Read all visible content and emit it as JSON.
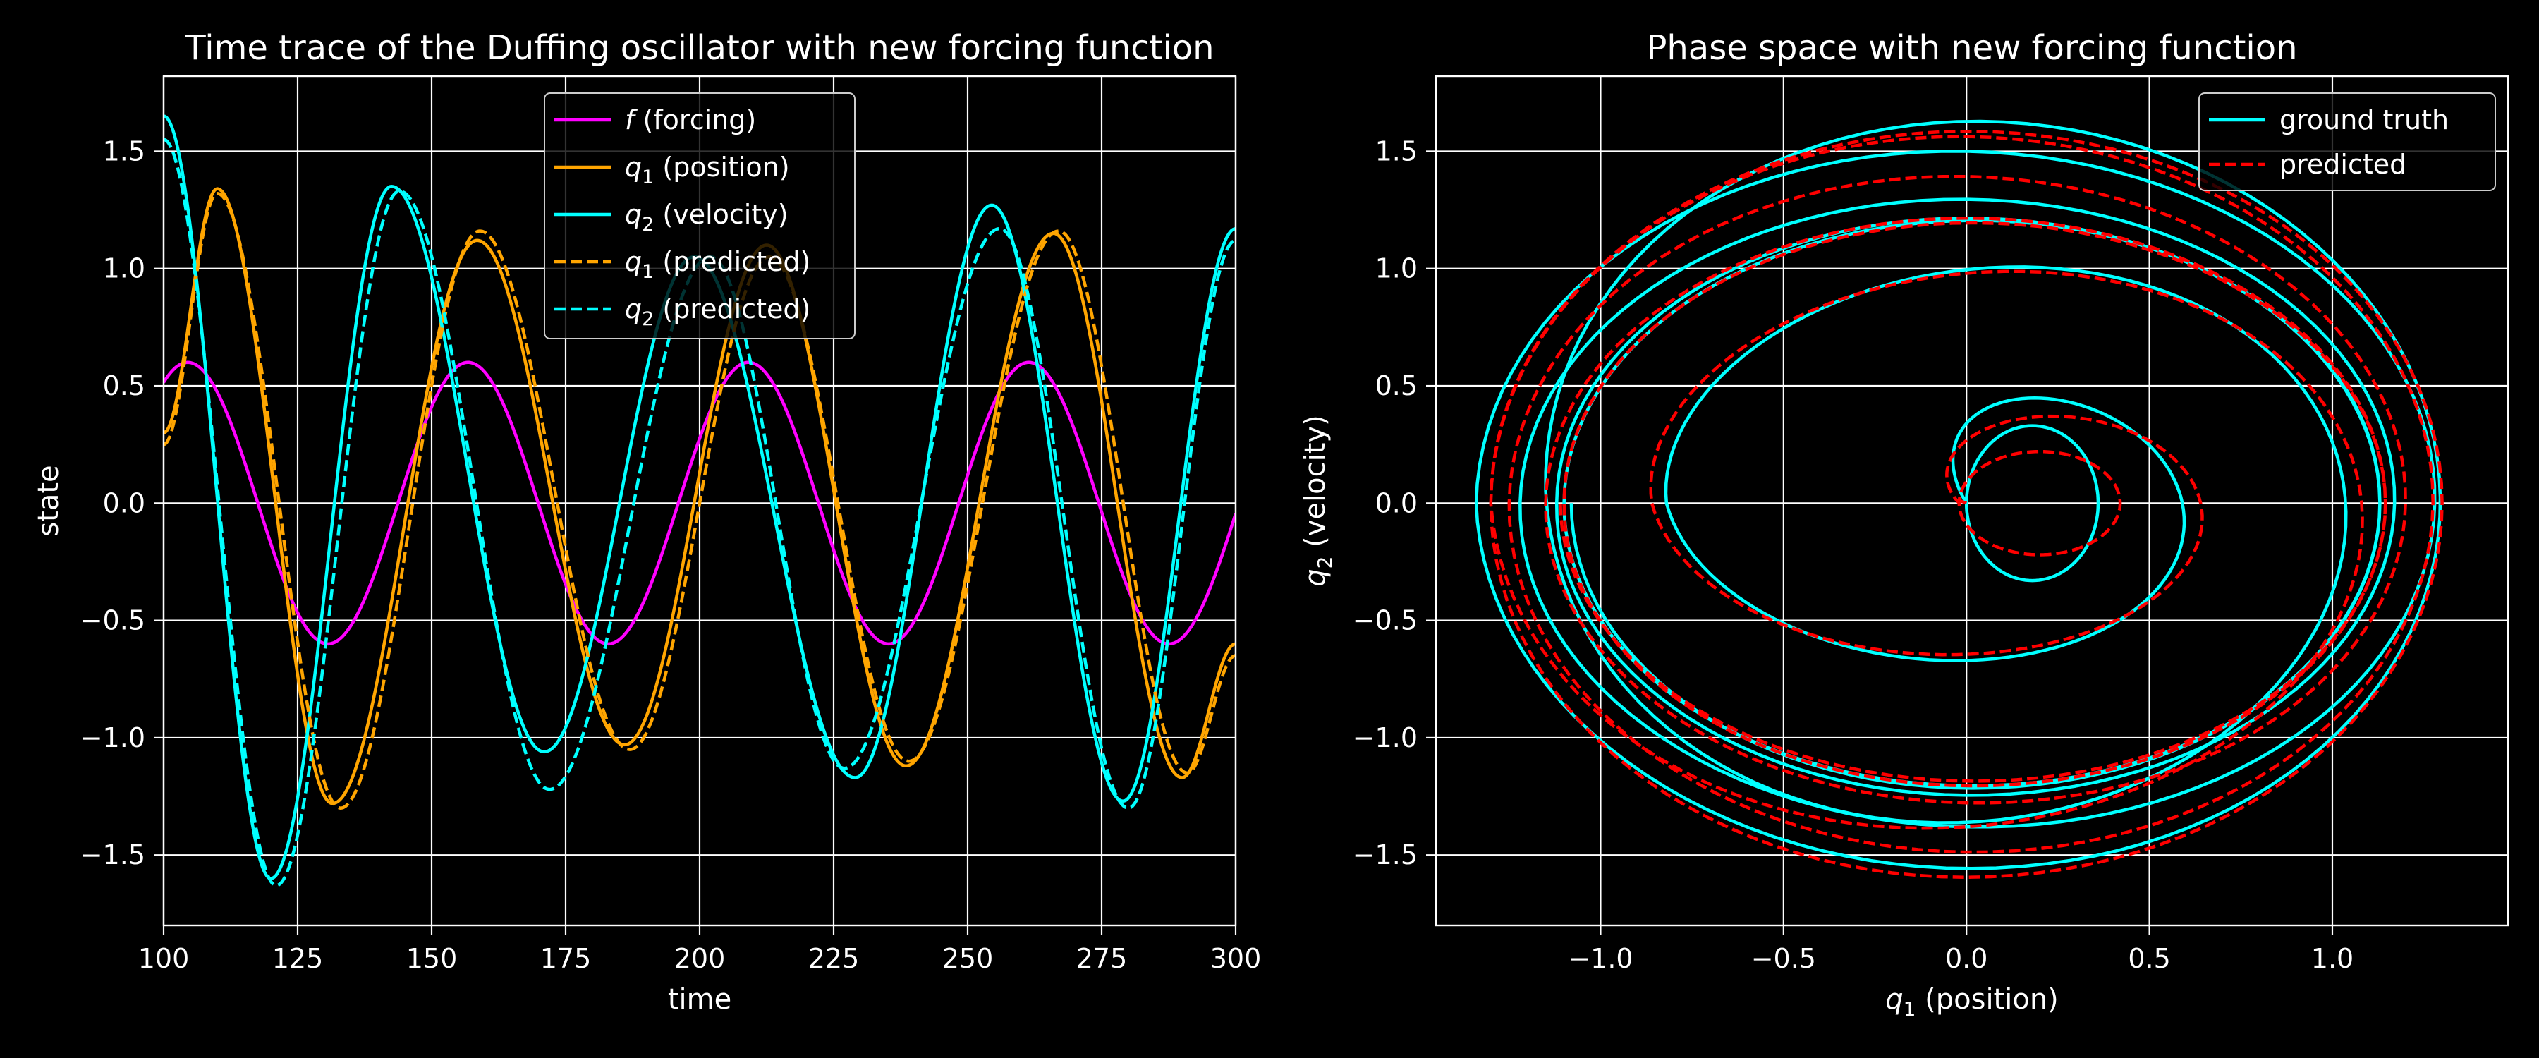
{
  "chart_data": [
    {
      "type": "line",
      "title": "Time trace of the Duffing oscillator with new forcing function",
      "xlabel": "time",
      "ylabel": "state",
      "xlim": [
        100,
        300
      ],
      "ylim": [
        -1.8,
        1.82
      ],
      "xticks": [
        100,
        125,
        150,
        175,
        200,
        225,
        250,
        275,
        300
      ],
      "xtick_labels": [
        "100",
        "125",
        "150",
        "175",
        "200",
        "225",
        "250",
        "275",
        "300"
      ],
      "yticks": [
        -1.5,
        -1.0,
        -0.5,
        0.0,
        0.5,
        1.0,
        1.5
      ],
      "ytick_labels": [
        "−1.5",
        "−1.0",
        "−0.5",
        "0.0",
        "0.5",
        "1.0",
        "1.5"
      ],
      "grid": true,
      "legend_position": "top-center",
      "series": [
        {
          "name": "f (forcing)",
          "legend_base": "f",
          "legend_rest": " (forcing)",
          "color": "#ff00ff",
          "style": "solid",
          "func": "forcing"
        },
        {
          "name": "q1 (position)",
          "legend_base": "q",
          "legend_sub": "1",
          "legend_rest": " (position)",
          "color": "#ffa500",
          "style": "solid",
          "func": "q1"
        },
        {
          "name": "q2 (velocity)",
          "legend_base": "q",
          "legend_sub": "2",
          "legend_rest": " (velocity)",
          "color": "#00ffff",
          "style": "solid",
          "func": "q2"
        },
        {
          "name": "q1 (predicted)",
          "legend_base": "q",
          "legend_sub": "1",
          "legend_rest": " (predicted)",
          "color": "#ffa500",
          "style": "dashed",
          "func": "q1p"
        },
        {
          "name": "q2 (predicted)",
          "legend_base": "q",
          "legend_sub": "2",
          "legend_rest": " (predicted)",
          "color": "#00ffff",
          "style": "dashed",
          "func": "q2p"
        }
      ],
      "curve_params": {
        "forcing": {
          "amplitude": 0.6,
          "period": 52.3,
          "first_peak_time": 104.5
        },
        "q1": {
          "peaks": [
            [
              100,
              0.3
            ],
            [
              110,
              1.34
            ],
            [
              131.5,
              -1.28
            ],
            [
              158.5,
              1.12
            ],
            [
              186,
              -1.03
            ],
            [
              212.5,
              1.1
            ],
            [
              238.5,
              -1.12
            ],
            [
              266,
              1.15
            ],
            [
              290,
              -1.17
            ],
            [
              300,
              -0.6
            ]
          ]
        },
        "q2": {
          "peaks": [
            [
              100,
              1.65
            ],
            [
              120,
              -1.6
            ],
            [
              142.5,
              1.35
            ],
            [
              171,
              -1.06
            ],
            [
              199,
              1.05
            ],
            [
              229,
              -1.17
            ],
            [
              254.5,
              1.27
            ],
            [
              279,
              -1.27
            ],
            [
              300,
              1.17
            ]
          ]
        },
        "q1p": {
          "peaks": [
            [
              100,
              0.25
            ],
            [
              110,
              1.32
            ],
            [
              133,
              -1.3
            ],
            [
              159,
              1.16
            ],
            [
              187,
              -1.05
            ],
            [
              213,
              1.05
            ],
            [
              239,
              -1.1
            ],
            [
              267,
              1.16
            ],
            [
              291,
              -1.15
            ],
            [
              300,
              -0.65
            ]
          ]
        },
        "q2p": {
          "peaks": [
            [
              100,
              1.55
            ],
            [
              121,
              -1.63
            ],
            [
              144,
              1.33
            ],
            [
              172,
              -1.22
            ],
            [
              202,
              1.05
            ],
            [
              227,
              -1.13
            ],
            [
              256,
              1.17
            ],
            [
              280,
              -1.3
            ],
            [
              300,
              1.12
            ]
          ]
        }
      }
    },
    {
      "type": "line",
      "title": "Phase space with new forcing function",
      "xlabel": "q1 (position)",
      "ylabel": "q2 (velocity)",
      "xlim": [
        -1.45,
        1.48
      ],
      "ylim": [
        -1.8,
        1.82
      ],
      "xticks": [
        -1.0,
        -0.5,
        0.0,
        0.5,
        1.0
      ],
      "xtick_labels": [
        "−1.0",
        "−0.5",
        "0.0",
        "0.5",
        "1.0"
      ],
      "yticks": [
        -1.5,
        -1.0,
        -0.5,
        0.0,
        0.5,
        1.0,
        1.5
      ],
      "ytick_labels": [
        "−1.5",
        "−1.0",
        "−0.5",
        "0.0",
        "0.5",
        "1.0",
        "1.5"
      ],
      "grid": true,
      "legend_position": "top-right",
      "series": [
        {
          "name": "ground truth",
          "color": "#00ffff",
          "style": "solid"
        },
        {
          "name": "predicted",
          "color": "#ff0000",
          "style": "dashed"
        }
      ],
      "spiral_params": {
        "ground truth": {
          "start": [
            0.0,
            0.0
          ],
          "loops": [
            {
              "cx": 0.18,
              "cy": 0.0,
              "rx": 0.18,
              "ry": 0.33
            },
            {
              "cx": 0.0,
              "cy": 0.0,
              "rx": 0.82,
              "ry": 0.78
            },
            {
              "cx": 0.05,
              "cy": 0.05,
              "rx": 1.2,
              "ry": 1.6
            },
            {
              "cx": 0.0,
              "cy": 0.0,
              "rx": 1.34,
              "ry": 1.56
            },
            {
              "cx": 0.0,
              "cy": 0.0,
              "rx": 1.22,
              "ry": 1.32
            },
            {
              "cx": 0.0,
              "cy": 0.0,
              "rx": 1.12,
              "ry": 1.22
            },
            {
              "cx": 0.02,
              "cy": 0.0,
              "rx": 1.12,
              "ry": 1.2
            },
            {
              "cx": 0.02,
              "cy": 0.0,
              "rx": 1.1,
              "ry": 1.22
            }
          ]
        },
        "predicted": {
          "start": [
            0.0,
            0.0
          ],
          "loops": [
            {
              "cx": 0.2,
              "cy": 0.0,
              "rx": 0.22,
              "ry": 0.22
            },
            {
              "cx": 0.0,
              "cy": 0.0,
              "rx": 0.86,
              "ry": 0.78
            },
            {
              "cx": 0.0,
              "cy": 0.0,
              "rx": 1.3,
              "ry": 1.58
            },
            {
              "cx": 0.0,
              "cy": 0.0,
              "rx": 1.3,
              "ry": 1.6
            },
            {
              "cx": 0.0,
              "cy": 0.0,
              "rx": 1.25,
              "ry": 1.45
            },
            {
              "cx": 0.0,
              "cy": 0.0,
              "rx": 1.15,
              "ry": 1.22
            },
            {
              "cx": 0.02,
              "cy": 0.0,
              "rx": 1.12,
              "ry": 1.2
            },
            {
              "cx": 0.02,
              "cy": 0.0,
              "rx": 1.13,
              "ry": 1.18
            }
          ]
        }
      }
    }
  ]
}
